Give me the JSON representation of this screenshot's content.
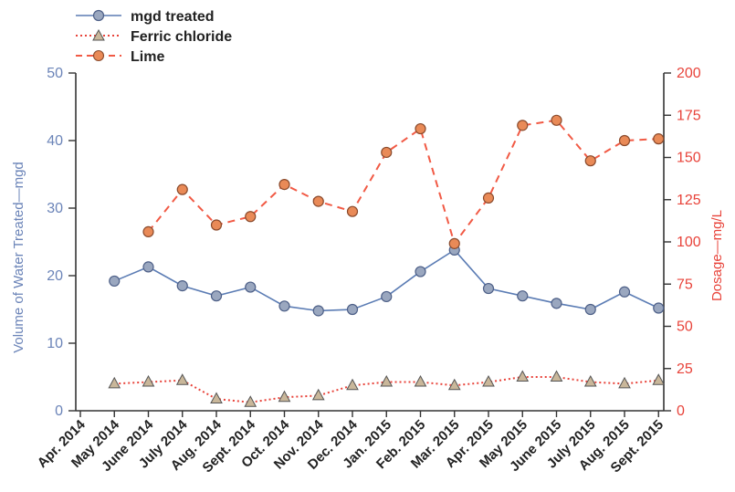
{
  "chart_data": {
    "type": "line",
    "title": "",
    "xlabel": "",
    "ylabel": "Volume of Water Treated—mgd",
    "ylabel_right": "Dosage—mg/L",
    "categories": [
      "Apr. 2014",
      "May 2014",
      "June 2014",
      "July 2014",
      "Aug. 2014",
      "Sept. 2014",
      "Oct. 2014",
      "Nov. 2014",
      "Dec. 2014",
      "Jan. 2015",
      "Feb. 2015",
      "Mar. 2015",
      "Apr. 2015",
      "May 2015",
      "June 2015",
      "July 2015",
      "Aug. 2015",
      "Sept. 2015"
    ],
    "ylim": [
      0,
      50
    ],
    "ylim_right": [
      0,
      200
    ],
    "yticks_left": [
      "0",
      "10",
      "20",
      "30",
      "40",
      "50"
    ],
    "yticks_right": [
      "0",
      "25",
      "50",
      "75",
      "100",
      "125",
      "150",
      "175",
      "200"
    ],
    "legend_position": "top-left",
    "grid": false,
    "series": [
      {
        "name": "mgd treated",
        "axis": "left",
        "style": "solid",
        "marker": "circle",
        "color": "#5b7cb4",
        "marker_fill": "#9aa7bf",
        "values": [
          null,
          19.2,
          21.3,
          18.5,
          17.0,
          18.3,
          15.5,
          14.8,
          15.0,
          16.9,
          20.6,
          23.8,
          18.1,
          17.0,
          15.9,
          15.0,
          17.6,
          15.2
        ]
      },
      {
        "name": "Ferric chloride",
        "axis": "right",
        "style": "dotted",
        "marker": "triangle",
        "color": "#e8433a",
        "marker_fill": "#c9b79a",
        "values": [
          null,
          16,
          17,
          18,
          7,
          5,
          8,
          9,
          15,
          17,
          17,
          15,
          17,
          20,
          20,
          17,
          16,
          18
        ]
      },
      {
        "name": "Lime",
        "axis": "right",
        "style": "dashed",
        "marker": "circle",
        "color": "#f15a45",
        "marker_fill": "#e98a57",
        "values": [
          null,
          null,
          106,
          131,
          110,
          115,
          134,
          124,
          118,
          153,
          167,
          99,
          126,
          169,
          172,
          148,
          160,
          161
        ]
      }
    ]
  }
}
